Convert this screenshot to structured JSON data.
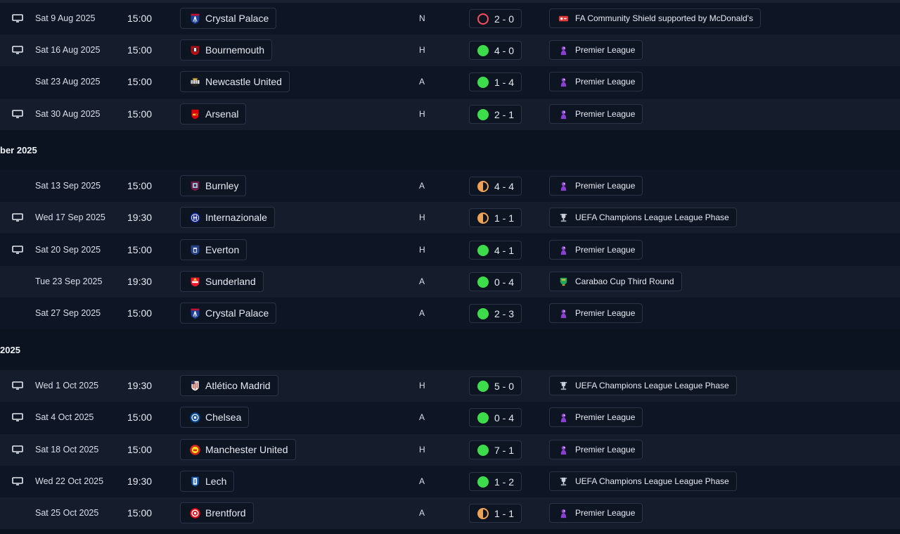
{
  "months": [
    {
      "label": "ber 2025"
    },
    {
      "label": "2025"
    }
  ],
  "colors": {
    "win": "#3ddc4a",
    "draw": "#f0a254",
    "loss": "#ff4d5e",
    "premier_league": "#8b3fd1",
    "carabao": "#1fa85a"
  },
  "fixtures": [
    {
      "tv": true,
      "date": "Sat 9 Aug 2025",
      "time": "15:00",
      "team": "Crystal Palace",
      "crest": "crystal-palace",
      "venue": "N",
      "result": "loss",
      "score": "2 - 0",
      "competition": "FA Community Shield supported by McDonald's",
      "comp_icon": "community-shield"
    },
    {
      "tv": true,
      "date": "Sat 16 Aug 2025",
      "time": "15:00",
      "team": "Bournemouth",
      "crest": "bournemouth",
      "venue": "H",
      "result": "win",
      "score": "4 - 0",
      "competition": "Premier League",
      "comp_icon": "premier-league"
    },
    {
      "tv": false,
      "date": "Sat 23 Aug 2025",
      "time": "15:00",
      "team": "Newcastle United",
      "crest": "newcastle",
      "venue": "A",
      "result": "win",
      "score": "1 - 4",
      "competition": "Premier League",
      "comp_icon": "premier-league"
    },
    {
      "tv": true,
      "date": "Sat 30 Aug 2025",
      "time": "15:00",
      "team": "Arsenal",
      "crest": "arsenal",
      "venue": "H",
      "result": "win",
      "score": "2 - 1",
      "competition": "Premier League",
      "comp_icon": "premier-league"
    },
    {
      "tv": false,
      "date": "Sat 13 Sep 2025",
      "time": "15:00",
      "team": "Burnley",
      "crest": "burnley",
      "venue": "A",
      "result": "draw",
      "score": "4 - 4",
      "competition": "Premier League",
      "comp_icon": "premier-league"
    },
    {
      "tv": true,
      "date": "Wed 17 Sep 2025",
      "time": "19:30",
      "team": "Internazionale",
      "crest": "inter",
      "venue": "H",
      "result": "draw",
      "score": "1 - 1",
      "competition": "UEFA Champions League League Phase",
      "comp_icon": "champions-league"
    },
    {
      "tv": true,
      "date": "Sat 20 Sep 2025",
      "time": "15:00",
      "team": "Everton",
      "crest": "everton",
      "venue": "H",
      "result": "win",
      "score": "4 - 1",
      "competition": "Premier League",
      "comp_icon": "premier-league"
    },
    {
      "tv": false,
      "date": "Tue 23 Sep 2025",
      "time": "19:30",
      "team": "Sunderland",
      "crest": "sunderland",
      "venue": "A",
      "result": "win",
      "score": "0 - 4",
      "competition": "Carabao Cup Third Round",
      "comp_icon": "carabao-cup"
    },
    {
      "tv": false,
      "date": "Sat 27 Sep 2025",
      "time": "15:00",
      "team": "Crystal Palace",
      "crest": "crystal-palace",
      "venue": "A",
      "result": "win",
      "score": "2 - 3",
      "competition": "Premier League",
      "comp_icon": "premier-league"
    },
    {
      "tv": true,
      "date": "Wed 1 Oct 2025",
      "time": "19:30",
      "team": "Atlético Madrid",
      "crest": "atletico",
      "venue": "H",
      "result": "win",
      "score": "5 - 0",
      "competition": "UEFA Champions League League Phase",
      "comp_icon": "champions-league"
    },
    {
      "tv": true,
      "date": "Sat 4 Oct 2025",
      "time": "15:00",
      "team": "Chelsea",
      "crest": "chelsea",
      "venue": "A",
      "result": "win",
      "score": "0 - 4",
      "competition": "Premier League",
      "comp_icon": "premier-league"
    },
    {
      "tv": true,
      "date": "Sat 18 Oct 2025",
      "time": "15:00",
      "team": "Manchester United",
      "crest": "man-united",
      "venue": "H",
      "result": "win",
      "score": "7 - 1",
      "competition": "Premier League",
      "comp_icon": "premier-league"
    },
    {
      "tv": true,
      "date": "Wed 22 Oct 2025",
      "time": "19:30",
      "team": "Lech",
      "crest": "lech",
      "venue": "A",
      "result": "win",
      "score": "1 - 2",
      "competition": "UEFA Champions League League Phase",
      "comp_icon": "champions-league"
    },
    {
      "tv": false,
      "date": "Sat 25 Oct 2025",
      "time": "15:00",
      "team": "Brentford",
      "crest": "brentford",
      "venue": "A",
      "result": "draw",
      "score": "1 - 1",
      "competition": "Premier League",
      "comp_icon": "premier-league"
    }
  ]
}
